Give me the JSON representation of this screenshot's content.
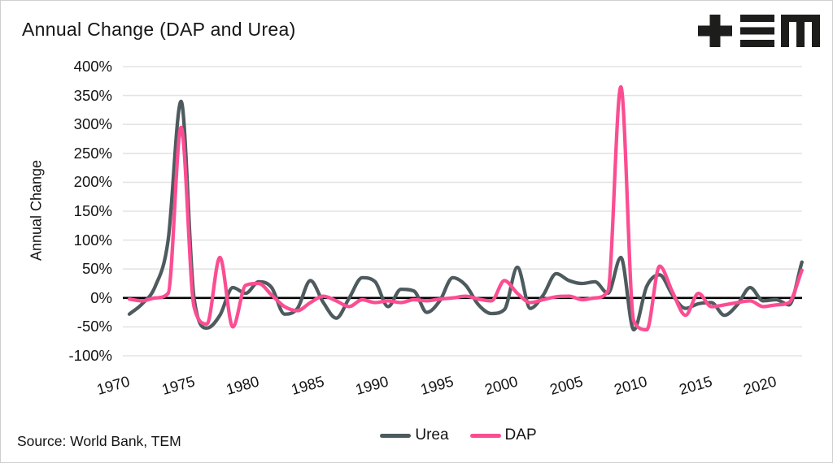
{
  "header": {
    "title": "Annual Change (DAP and Urea)",
    "logo_name": "TEM"
  },
  "footer": {
    "source": "Source: World Bank, TEM"
  },
  "colors": {
    "urea": "#4e5b5e",
    "dap": "#fb4d92",
    "grid": "#e4e4e4",
    "zero_line": "#000000",
    "text": "#141414"
  },
  "chart_data": {
    "type": "line",
    "title": "Annual Change (DAP and Urea)",
    "xlabel": "",
    "ylabel": "Annual Change",
    "ylim": [
      -100,
      400
    ],
    "grid": "horizontal",
    "zero_line": true,
    "legend_position": "bottom",
    "ytick_values": [
      400,
      350,
      300,
      250,
      200,
      150,
      100,
      50,
      0,
      -50,
      -100
    ],
    "ytick_labels": [
      "400%",
      "350%",
      "300%",
      "250%",
      "200%",
      "150%",
      "100%",
      "50%",
      "0%",
      "-50%",
      "-100%"
    ],
    "xtick_values": [
      1970,
      1975,
      1980,
      1985,
      1990,
      1995,
      2000,
      2005,
      2010,
      2015,
      2020
    ],
    "x": [
      1970,
      1971,
      1972,
      1973,
      1974,
      1975,
      1976,
      1977,
      1978,
      1979,
      1980,
      1981,
      1982,
      1983,
      1984,
      1985,
      1986,
      1987,
      1988,
      1989,
      1990,
      1991,
      1992,
      1993,
      1994,
      1995,
      1996,
      1997,
      1998,
      1999,
      2000,
      2001,
      2002,
      2003,
      2004,
      2005,
      2006,
      2007,
      2008,
      2009,
      2010,
      2011,
      2012,
      2013,
      2014,
      2015,
      2016,
      2017,
      2018,
      2019,
      2020,
      2021,
      2022
    ],
    "series": [
      {
        "name": "Urea",
        "color": "#4e5b5e",
        "values": [
          -28,
          -10,
          20,
          100,
          340,
          0,
          -52,
          -30,
          18,
          8,
          28,
          18,
          -28,
          -18,
          30,
          -8,
          -35,
          0,
          35,
          28,
          -15,
          15,
          12,
          -25,
          -5,
          35,
          22,
          -12,
          -27,
          -20,
          53,
          -18,
          5,
          42,
          30,
          25,
          28,
          8,
          70,
          -55,
          20,
          40,
          5,
          -18,
          -10,
          -8,
          -30,
          -12,
          18,
          -5,
          -3,
          -12,
          62
        ]
      },
      {
        "name": "DAP",
        "color": "#fb4d92",
        "values": [
          -2,
          -5,
          0,
          8,
          295,
          -15,
          -45,
          70,
          -50,
          22,
          25,
          5,
          -15,
          -22,
          -8,
          3,
          -5,
          -15,
          -3,
          -8,
          -5,
          -8,
          -3,
          -5,
          -2,
          0,
          3,
          -2,
          -5,
          30,
          8,
          -8,
          -3,
          2,
          3,
          -3,
          0,
          12,
          365,
          -40,
          -55,
          55,
          10,
          -30,
          8,
          -15,
          -12,
          -8,
          -5,
          -15,
          -12,
          -8,
          48
        ]
      }
    ]
  }
}
